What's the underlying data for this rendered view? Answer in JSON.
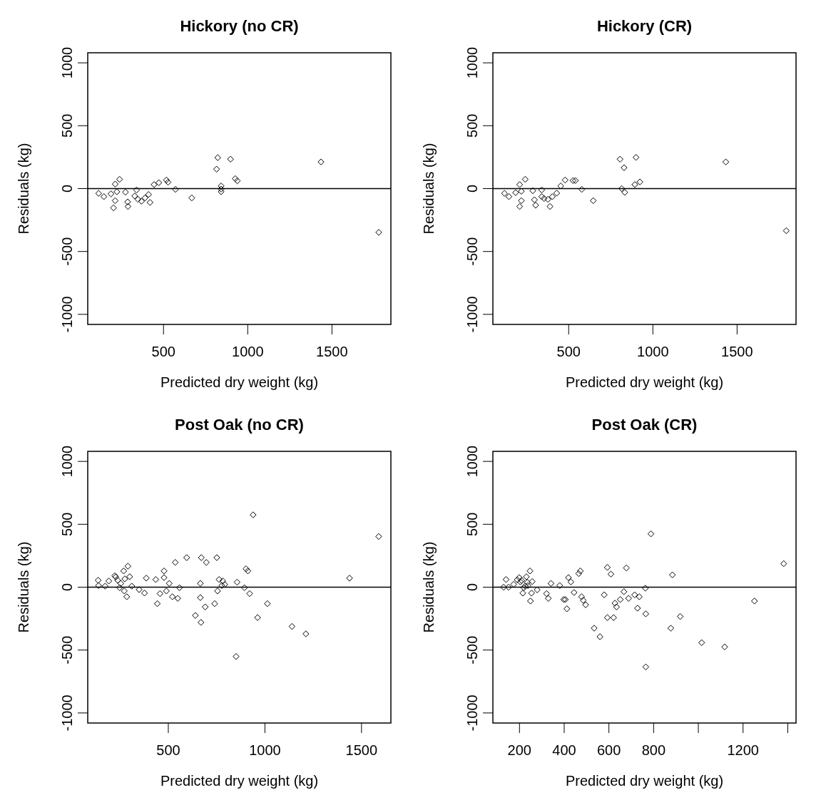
{
  "chart_data": [
    {
      "type": "scatter",
      "title": "Hickory (no CR)",
      "xlabel": "Predicted dry weight (kg)",
      "ylabel": "Residuals (kg)",
      "xlim": [
        50,
        1850
      ],
      "ylim": [
        -1080,
        1080
      ],
      "xticks": [
        500,
        1000,
        1500
      ],
      "yticks": [
        -1000,
        -500,
        0,
        500,
        1000
      ],
      "marker": "diamond",
      "ref_lines": [
        {
          "axis": "y",
          "value": 0,
          "color": "#000000"
        }
      ],
      "series": [
        {
          "color": "#000000",
          "x": [
            115,
            146,
            188,
            203,
            213,
            213,
            223,
            239,
            274,
            287,
            289,
            340,
            329,
            348,
            369,
            390,
            411,
            420,
            444,
            472,
            517,
            527,
            571,
            668,
            815,
            822,
            842,
            842,
            842,
            898,
            926,
            938,
            1435,
            1778
          ],
          "values": [
            -38,
            -64,
            -42,
            -153,
            -96,
            36,
            -25,
            74,
            -28,
            -106,
            -142,
            -11,
            -59,
            -85,
            -100,
            -74,
            -47,
            -110,
            32,
            47,
            68,
            51,
            -6,
            -74,
            155,
            246,
            21,
            -4,
            -25,
            234,
            79,
            62,
            212,
            -348
          ]
        }
      ]
    },
    {
      "type": "scatter",
      "title": "Hickory (CR)",
      "xlabel": "Predicted dry weight (kg)",
      "ylabel": "Residuals (kg)",
      "xlim": [
        50,
        1850
      ],
      "ylim": [
        -1080,
        1080
      ],
      "xticks": [
        500,
        1000,
        1500
      ],
      "yticks": [
        -1000,
        -500,
        0,
        500,
        1000
      ],
      "marker": "diamond",
      "ref_lines": [
        {
          "axis": "y",
          "value": 0,
          "color": "#000000"
        }
      ],
      "series": [
        {
          "color": "#000000",
          "x": [
            119,
            145,
            185,
            209,
            219,
            219,
            209,
            242,
            287,
            297,
            304,
            340,
            340,
            354,
            377,
            389,
            403,
            429,
            453,
            479,
            526,
            540,
            578,
            646,
            805,
            829,
            815,
            833,
            893,
            923,
            900,
            1433,
            1792
          ],
          "values": [
            -38,
            -64,
            -32,
            32,
            -21,
            -96,
            -142,
            74,
            -17,
            -89,
            -132,
            -11,
            -64,
            -79,
            -85,
            -142,
            -64,
            -36,
            21,
            68,
            64,
            64,
            -6,
            -96,
            234,
            166,
            0,
            -30,
            32,
            53,
            248,
            212,
            -335
          ]
        }
      ]
    },
    {
      "type": "scatter",
      "title": "Post Oak (no CR)",
      "xlabel": "Predicted dry weight (kg)",
      "ylabel": "Residuals (kg)",
      "xlim": [
        83,
        1652
      ],
      "ylim": [
        -1080,
        1080
      ],
      "xticks": [
        500,
        1000,
        1500
      ],
      "yticks": [
        -1000,
        -500,
        0,
        500,
        1000
      ],
      "marker": "diamond",
      "ref_lines": [
        {
          "axis": "y",
          "value": 0,
          "color": "#000000"
        }
      ],
      "series": [
        {
          "color": "#000000",
          "x": [
            137,
            139,
            173,
            192,
            223,
            228,
            238,
            248,
            254,
            269,
            275,
            272,
            285,
            291,
            300,
            311,
            349,
            377,
            386,
            435,
            443,
            457,
            478,
            478,
            490,
            505,
            521,
            536,
            549,
            558,
            595,
            640,
            666,
            666,
            669,
            671,
            697,
            691,
            740,
            751,
            755,
            763,
            777,
            782,
            792,
            851,
            856,
            894,
            902,
            912,
            921,
            939,
            962,
            1013,
            1140,
            1212,
            1438,
            1589
          ],
          "values": [
            55,
            13,
            8,
            49,
            91,
            81,
            55,
            -4,
            30,
            129,
            66,
            -30,
            -76,
            167,
            83,
            8,
            -19,
            -47,
            72,
            61,
            -131,
            -51,
            129,
            76,
            -30,
            30,
            -76,
            197,
            -89,
            -4,
            235,
            -225,
            30,
            -83,
            -280,
            235,
            197,
            -157,
            -131,
            235,
            -30,
            61,
            13,
            49,
            21,
            -551,
            40,
            -4,
            146,
            129,
            -51,
            575,
            -242,
            -131,
            -312,
            -371,
            72,
            403
          ]
        }
      ]
    },
    {
      "type": "scatter",
      "title": "Post Oak (CR)",
      "xlabel": "Predicted dry weight (kg)",
      "ylabel": "Residuals (kg)",
      "xlim": [
        81,
        1437
      ],
      "ylim": [
        -1080,
        1080
      ],
      "xticks": [
        200,
        400,
        600,
        800,
        {
          "value": 1000,
          "label": null
        },
        1200,
        {
          "value": 1400,
          "label": null
        }
      ],
      "yticks": [
        -1000,
        -500,
        0,
        500,
        1000
      ],
      "marker": "diamond",
      "ref_lines": [
        {
          "axis": "y",
          "value": 0,
          "color": "#000000"
        }
      ],
      "series": [
        {
          "color": "#000000",
          "x": [
            129,
            140,
            151,
            174,
            190,
            199,
            204,
            210,
            215,
            219,
            226,
            231,
            235,
            238,
            247,
            249,
            254,
            257,
            279,
            321,
            329,
            341,
            380,
            398,
            405,
            412,
            419,
            430,
            444,
            465,
            472,
            478,
            485,
            496,
            534,
            560,
            579,
            593,
            593,
            609,
            621,
            627,
            634,
            651,
            667,
            678,
            688,
            715,
            728,
            736,
            763,
            765,
            765,
            788,
            877,
            884,
            919,
            1015,
            1118,
            1251,
            1382
          ],
          "values": [
            0,
            61,
            0,
            23,
            59,
            76,
            42,
            53,
            -47,
            -4,
            8,
            83,
            38,
            13,
            129,
            -110,
            -47,
            45,
            -21,
            -51,
            -89,
            30,
            13,
            -98,
            -98,
            -172,
            76,
            42,
            -42,
            108,
            129,
            -76,
            -104,
            -140,
            -326,
            -394,
            -61,
            157,
            -242,
            104,
            -242,
            -127,
            -157,
            -98,
            -36,
            153,
            -89,
            -61,
            -167,
            -76,
            -8,
            -212,
            -634,
            424,
            -326,
            98,
            -233,
            -441,
            -475,
            -110,
            187
          ]
        }
      ]
    }
  ]
}
